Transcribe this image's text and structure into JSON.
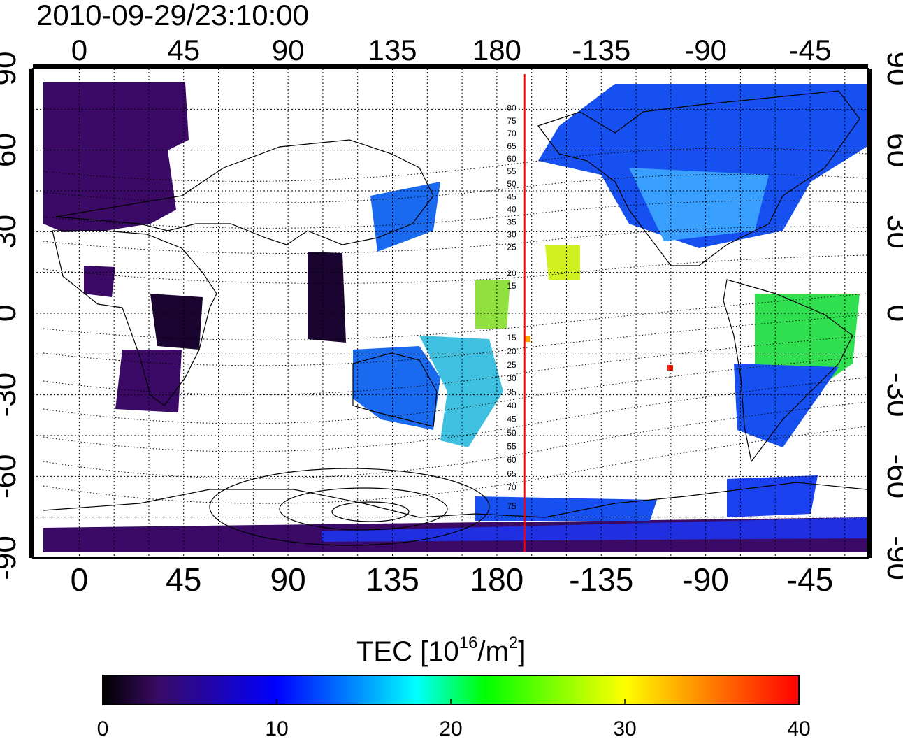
{
  "timestamp": "2010-09-29/23:10:00",
  "colors": {
    "background": "#ffffff",
    "grid": "#000000",
    "meridian_line": "#ff0000",
    "colormap": [
      "#000000",
      "#3a0a66",
      "#0000ff",
      "#00a0ff",
      "#00ffff",
      "#00ff00",
      "#ffff00",
      "#ff8000",
      "#ff0000"
    ]
  },
  "map": {
    "projection": "equirectangular",
    "grid": "dotted",
    "lon_range_deg": [
      -20,
      340
    ],
    "lat_range_deg": [
      -90,
      90
    ],
    "top_ticks": [
      "0",
      "45",
      "90",
      "135",
      "180",
      "-135",
      "-90",
      "-45"
    ],
    "bottom_ticks": [
      "0",
      "45",
      "90",
      "135",
      "180",
      "-135",
      "-90",
      "-45"
    ],
    "left_ticks": [
      "90",
      "60",
      "30",
      "0",
      "-30",
      "-60",
      "-90"
    ],
    "right_ticks": [
      "90",
      "60",
      "30",
      "0",
      "-30",
      "-60",
      "-90"
    ],
    "highlight_meridian_deg": 192,
    "contour_labels_upper": [
      "80",
      "75",
      "70",
      "65",
      "60",
      "55",
      "50",
      "45",
      "40",
      "35",
      "30",
      "25",
      "20",
      "15"
    ],
    "contour_labels_lower": [
      "15",
      "20",
      "25",
      "30",
      "35",
      "40",
      "45",
      "50",
      "55",
      "60",
      "65",
      "70",
      "75"
    ]
  },
  "colorbar": {
    "title": "TEC  [10",
    "title_exp": "16",
    "title_mid": "/m",
    "title_exp2": "2",
    "title_end": "]",
    "ticks": [
      "0",
      "10",
      "20",
      "30",
      "40"
    ],
    "range": [
      0,
      40
    ]
  }
}
